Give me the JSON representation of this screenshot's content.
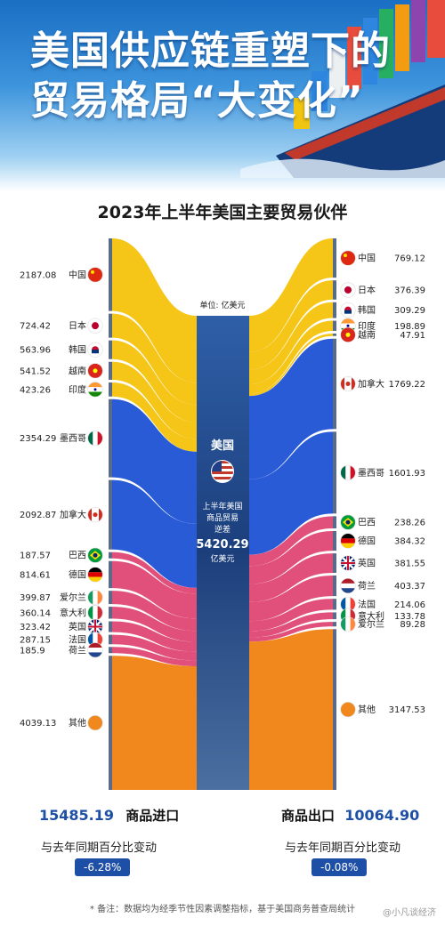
{
  "header": {
    "title_line1": "美国供应链重塑下的",
    "title_line2": "贸易格局“大变化”",
    "subtitle": "2023年上半年美国主要贸易伙伴"
  },
  "center": {
    "unit": "单位: 亿美元",
    "country": "美国",
    "deficit_lines": [
      "上半年美国",
      "商品贸易",
      "逆差"
    ],
    "deficit_value": "5420.29",
    "deficit_unit": "亿美元"
  },
  "chart_data": {
    "type": "sankey",
    "unit": "亿美元",
    "imports": [
      {
        "country": "中国",
        "value": 2187.08,
        "flag": "cn",
        "color": "#f5c518"
      },
      {
        "country": "日本",
        "value": 724.42,
        "flag": "jp",
        "color": "#f5c518"
      },
      {
        "country": "韩国",
        "value": 563.96,
        "flag": "kr",
        "color": "#f5c518"
      },
      {
        "country": "越南",
        "value": 541.52,
        "flag": "vn",
        "color": "#f5c518"
      },
      {
        "country": "印度",
        "value": 423.26,
        "flag": "in",
        "color": "#f5c518"
      },
      {
        "country": "墨西哥",
        "value": 2354.29,
        "flag": "mx",
        "color": "#2a5bd7"
      },
      {
        "country": "加拿大",
        "value": 2092.87,
        "flag": "ca",
        "color": "#2a5bd7"
      },
      {
        "country": "巴西",
        "value": 187.57,
        "flag": "br",
        "color": "#e0507a"
      },
      {
        "country": "德国",
        "value": 814.61,
        "flag": "de",
        "color": "#e0507a"
      },
      {
        "country": "爱尔兰",
        "value": 399.87,
        "flag": "ie",
        "color": "#e0507a"
      },
      {
        "country": "意大利",
        "value": 360.14,
        "flag": "it",
        "color": "#e0507a"
      },
      {
        "country": "英国",
        "value": 323.42,
        "flag": "gb",
        "color": "#e0507a"
      },
      {
        "country": "法国",
        "value": 287.15,
        "flag": "fr",
        "color": "#e0507a"
      },
      {
        "country": "荷兰",
        "value": 185.9,
        "flag": "nl",
        "color": "#e0507a"
      },
      {
        "country": "其他",
        "value": 4039.13,
        "flag": "other",
        "color": "#f0881e"
      }
    ],
    "exports": [
      {
        "country": "中国",
        "value": 769.12,
        "flag": "cn",
        "color": "#f5c518"
      },
      {
        "country": "日本",
        "value": 376.39,
        "flag": "jp",
        "color": "#f5c518"
      },
      {
        "country": "韩国",
        "value": 309.29,
        "flag": "kr",
        "color": "#f5c518"
      },
      {
        "country": "印度",
        "value": 198.89,
        "flag": "in",
        "color": "#f5c518"
      },
      {
        "country": "越南",
        "value": 47.91,
        "flag": "vn",
        "color": "#f5c518"
      },
      {
        "country": "加拿大",
        "value": 1769.22,
        "flag": "ca",
        "color": "#2a5bd7"
      },
      {
        "country": "墨西哥",
        "value": 1601.93,
        "flag": "mx",
        "color": "#2a5bd7"
      },
      {
        "country": "巴西",
        "value": 238.26,
        "flag": "br",
        "color": "#e0507a"
      },
      {
        "country": "德国",
        "value": 384.32,
        "flag": "de",
        "color": "#e0507a"
      },
      {
        "country": "英国",
        "value": 381.55,
        "flag": "gb",
        "color": "#e0507a"
      },
      {
        "country": "荷兰",
        "value": 403.37,
        "flag": "nl",
        "color": "#e0507a"
      },
      {
        "country": "法国",
        "value": 214.06,
        "flag": "fr",
        "color": "#e0507a"
      },
      {
        "country": "意大利",
        "value": 133.78,
        "flag": "it",
        "color": "#e0507a"
      },
      {
        "country": "爱尔兰",
        "value": 89.28,
        "flag": "ie",
        "color": "#e0507a"
      },
      {
        "country": "其他",
        "value": 3147.53,
        "flag": "other",
        "color": "#f0881e"
      }
    ]
  },
  "footer": {
    "import_value": "15485.19",
    "import_label": "商品进口",
    "export_label": "商品出口",
    "export_value": "10064.90",
    "change_label": "与去年同期百分比变动",
    "import_change": "-6.28%",
    "export_change": "-0.08%",
    "note": "* 备注：数据均为经季节性因素调整指标，基于美国商务普查局统计",
    "watermark": "@小凡谈经济"
  }
}
